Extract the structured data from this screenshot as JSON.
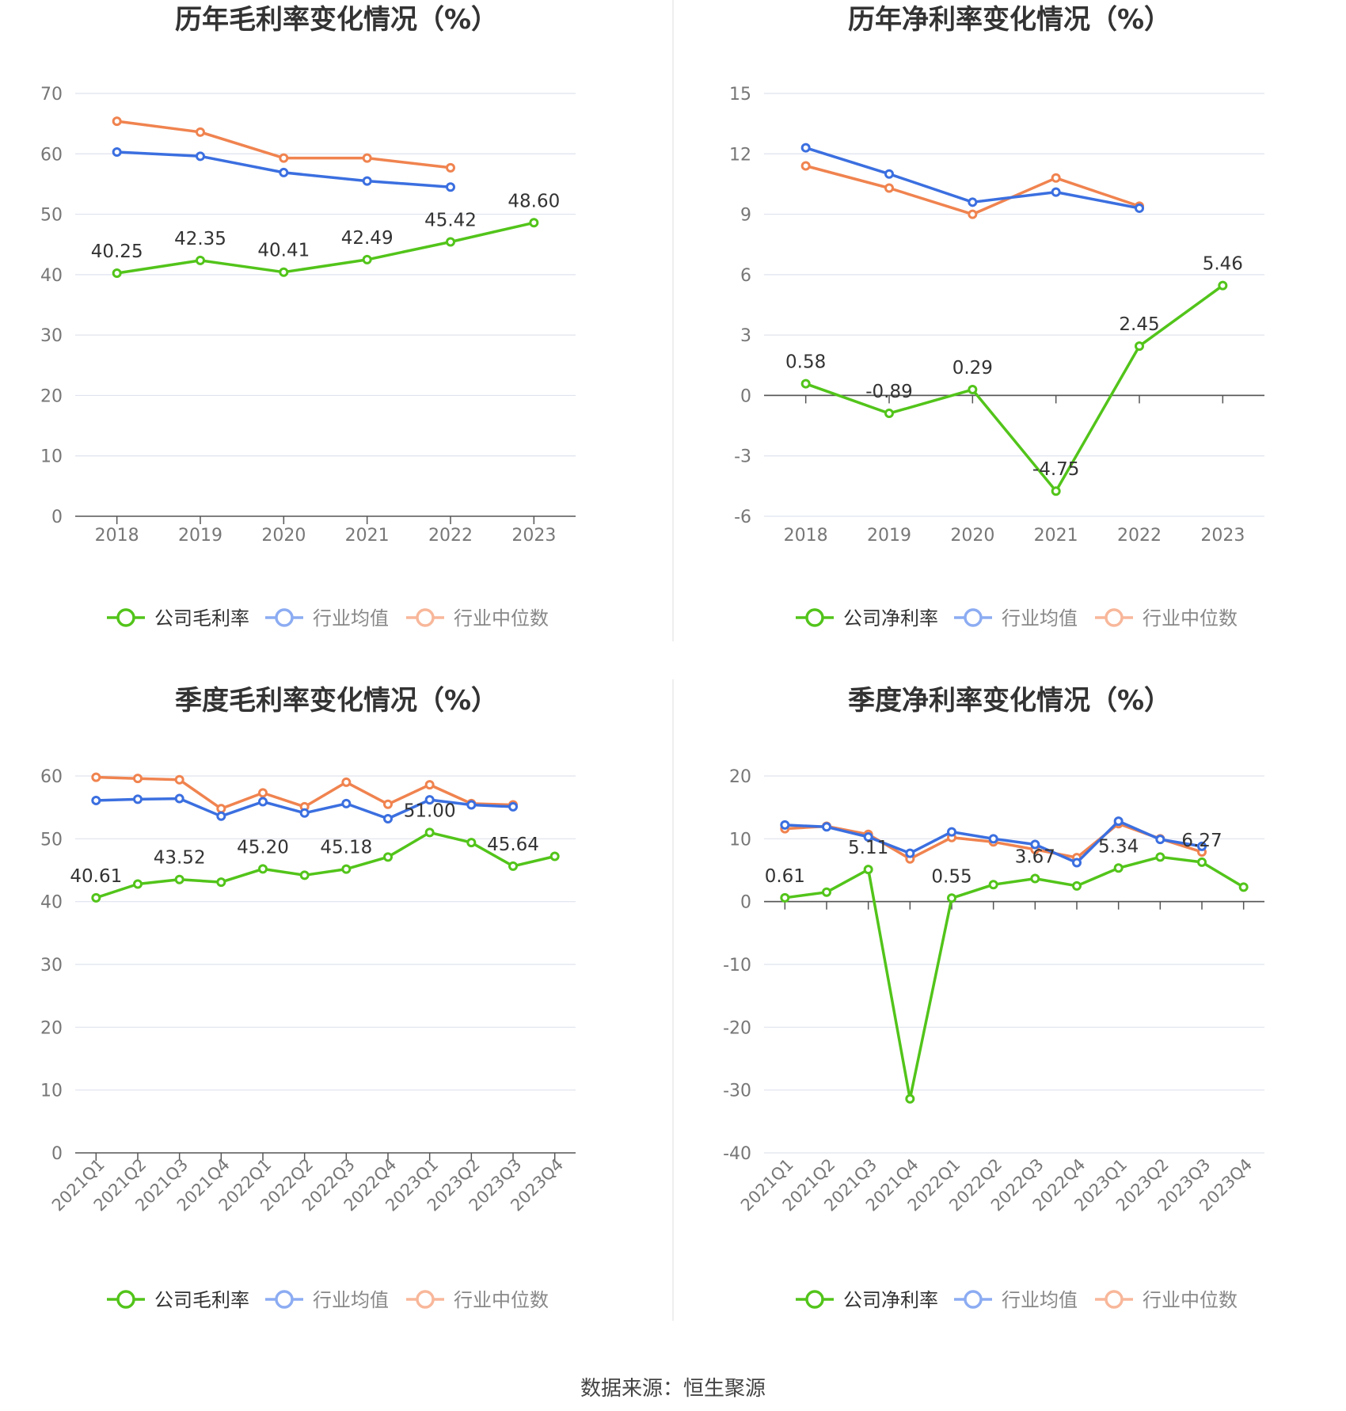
{
  "colors": {
    "company": "#52c41a",
    "industry_mean": "#3b6fe0",
    "industry_median": "#f0834f",
    "legend_mean": "#8cacf2",
    "legend_median": "#f8b79a",
    "grid": "#dfe3ee",
    "axis_text": "#777777",
    "title": "#333333",
    "divider": "#e8e8e8"
  },
  "source_text": "数据来源：恒生聚源",
  "chart_data": [
    {
      "type": "line",
      "title": "历年毛利率变化情况（%）",
      "categories": [
        "2018",
        "2019",
        "2020",
        "2021",
        "2022",
        "2023"
      ],
      "ylim": [
        0,
        70
      ],
      "yticks": [
        0,
        10,
        20,
        30,
        40,
        50,
        60,
        70
      ],
      "grid": true,
      "legend_position": "bottom",
      "series": [
        {
          "name": "公司毛利率",
          "role": "company",
          "values": [
            40.25,
            42.35,
            40.41,
            42.49,
            45.42,
            48.6
          ],
          "labels": [
            "40.25",
            "42.35",
            "40.41",
            "42.49",
            "45.42",
            "48.60"
          ]
        },
        {
          "name": "行业均值",
          "role": "industry_mean",
          "values": [
            60.3,
            59.6,
            56.9,
            55.5,
            54.5,
            null
          ]
        },
        {
          "name": "行业中位数",
          "role": "industry_median",
          "values": [
            65.4,
            63.6,
            59.3,
            59.3,
            57.7,
            null
          ]
        }
      ]
    },
    {
      "type": "line",
      "title": "历年净利率变化情况（%）",
      "categories": [
        "2018",
        "2019",
        "2020",
        "2021",
        "2022",
        "2023"
      ],
      "ylim": [
        -6,
        15
      ],
      "yticks": [
        -6,
        -3,
        0,
        3,
        6,
        9,
        12,
        15
      ],
      "grid": true,
      "legend_position": "bottom",
      "series": [
        {
          "name": "公司净利率",
          "role": "company",
          "values": [
            0.58,
            -0.89,
            0.29,
            -4.75,
            2.45,
            5.46
          ],
          "labels": [
            "0.58",
            "-0.89",
            "0.29",
            "-4.75",
            "2.45",
            "5.46"
          ]
        },
        {
          "name": "行业均值",
          "role": "industry_mean",
          "values": [
            12.3,
            11.0,
            9.6,
            10.1,
            9.3,
            null
          ]
        },
        {
          "name": "行业中位数",
          "role": "industry_median",
          "values": [
            11.4,
            10.3,
            9.0,
            10.8,
            9.4,
            null
          ]
        }
      ]
    },
    {
      "type": "line",
      "title": "季度毛利率变化情况（%）",
      "categories": [
        "2021Q1",
        "2021Q2",
        "2021Q3",
        "2021Q4",
        "2022Q1",
        "2022Q2",
        "2022Q3",
        "2022Q4",
        "2023Q1",
        "2023Q2",
        "2023Q3",
        "2023Q4"
      ],
      "ylim": [
        0,
        60
      ],
      "yticks": [
        0,
        10,
        20,
        30,
        40,
        50,
        60
      ],
      "grid": true,
      "legend_position": "bottom",
      "series": [
        {
          "name": "公司毛利率",
          "role": "company",
          "values": [
            40.61,
            42.8,
            43.52,
            43.1,
            45.2,
            44.2,
            45.18,
            47.1,
            51.0,
            49.4,
            45.64,
            47.2
          ],
          "labels": [
            "40.61",
            "",
            "43.52",
            "",
            "45.20",
            "",
            "45.18",
            "",
            "51.00",
            "",
            "45.64",
            ""
          ]
        },
        {
          "name": "行业均值",
          "role": "industry_mean",
          "values": [
            56.1,
            56.3,
            56.4,
            53.6,
            55.9,
            54.1,
            55.6,
            53.2,
            56.2,
            55.4,
            55.1,
            null
          ]
        },
        {
          "name": "行业中位数",
          "role": "industry_median",
          "values": [
            59.8,
            59.6,
            59.4,
            54.8,
            57.3,
            55.1,
            59.0,
            55.5,
            58.6,
            55.6,
            55.4,
            null
          ]
        }
      ]
    },
    {
      "type": "line",
      "title": "季度净利率变化情况（%）",
      "categories": [
        "2021Q1",
        "2021Q2",
        "2021Q3",
        "2021Q4",
        "2022Q1",
        "2022Q2",
        "2022Q3",
        "2022Q4",
        "2023Q1",
        "2023Q2",
        "2023Q3",
        "2023Q4"
      ],
      "ylim": [
        -40,
        20
      ],
      "yticks": [
        -40,
        -30,
        -20,
        -10,
        0,
        10,
        20
      ],
      "grid": true,
      "legend_position": "bottom",
      "series": [
        {
          "name": "公司净利率",
          "role": "company",
          "values": [
            0.61,
            1.5,
            5.11,
            -31.4,
            0.55,
            2.7,
            3.67,
            2.5,
            5.34,
            7.1,
            6.27,
            2.3
          ],
          "labels": [
            "0.61",
            "",
            "5.11",
            "",
            "0.55",
            "",
            "3.67",
            "",
            "5.34",
            "",
            "6.27",
            ""
          ]
        },
        {
          "name": "行业均值",
          "role": "industry_mean",
          "values": [
            12.2,
            11.9,
            10.3,
            7.7,
            11.1,
            10.0,
            9.1,
            6.2,
            12.8,
            9.9,
            8.8,
            null
          ]
        },
        {
          "name": "行业中位数",
          "role": "industry_median",
          "values": [
            11.6,
            12.0,
            10.7,
            6.8,
            10.2,
            9.5,
            8.3,
            7.0,
            12.4,
            10.0,
            7.9,
            null
          ]
        }
      ]
    }
  ]
}
